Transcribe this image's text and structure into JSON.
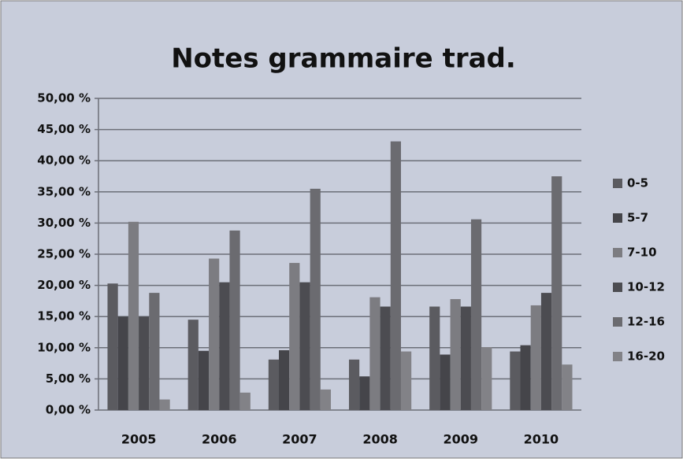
{
  "chart_data": {
    "type": "bar",
    "title": "Notes grammaire trad.",
    "categories": [
      "2005",
      "2006",
      "2007",
      "2008",
      "2009",
      "2010"
    ],
    "series": [
      {
        "name": "0-5",
        "color": "#5b5b60",
        "values": [
          20.3,
          14.5,
          8.1,
          8.1,
          16.6,
          9.4
        ]
      },
      {
        "name": "5-7",
        "color": "#45454a",
        "values": [
          15.0,
          9.5,
          9.6,
          5.4,
          8.9,
          10.4
        ]
      },
      {
        "name": "7-10",
        "color": "#7c7c81",
        "values": [
          30.2,
          24.3,
          23.6,
          18.1,
          17.8,
          16.8
        ]
      },
      {
        "name": "10-12",
        "color": "#4c4c51",
        "values": [
          15.0,
          20.5,
          20.5,
          16.6,
          16.6,
          18.8
        ]
      },
      {
        "name": "12-16",
        "color": "#6b6b70",
        "values": [
          18.8,
          28.8,
          35.5,
          43.1,
          30.6,
          37.5
        ]
      },
      {
        "name": "16-20",
        "color": "#828287",
        "values": [
          1.7,
          2.8,
          3.3,
          9.4,
          10.1,
          7.3
        ]
      }
    ],
    "ylim": [
      0,
      50
    ],
    "yticks": [
      {
        "value": 0,
        "label": "0,00 %"
      },
      {
        "value": 5,
        "label": "5,00 %"
      },
      {
        "value": 10,
        "label": "10,00 %"
      },
      {
        "value": 15,
        "label": "15,00 %"
      },
      {
        "value": 20,
        "label": "20,00 %"
      },
      {
        "value": 25,
        "label": "25,00 %"
      },
      {
        "value": 30,
        "label": "30,00 %"
      },
      {
        "value": 35,
        "label": "35,00 %"
      },
      {
        "value": 40,
        "label": "40,00 %"
      },
      {
        "value": 45,
        "label": "45,00 %"
      },
      {
        "value": 50,
        "label": "50,00 %"
      }
    ],
    "grid": true,
    "legend": "right"
  }
}
